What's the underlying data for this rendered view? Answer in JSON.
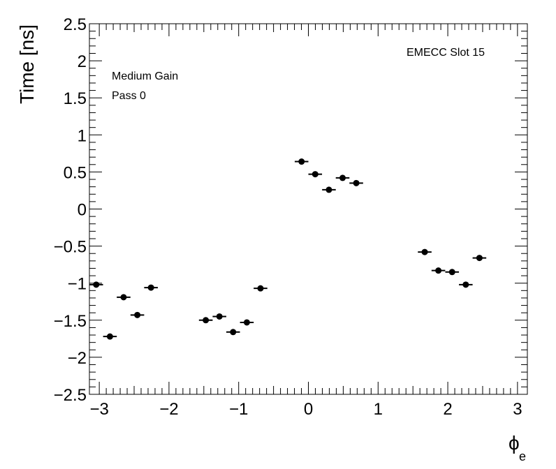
{
  "chart_data": {
    "type": "scatter",
    "title": "",
    "xlabel": "ϕ",
    "xlabel_subscript": "e",
    "ylabel": "Time [ns]",
    "xlim": [
      -3.1416,
      3.1416
    ],
    "ylim": [
      -2.5,
      2.5
    ],
    "x_ticks": [
      -3,
      -2,
      -1,
      0,
      1,
      2,
      3
    ],
    "x_tick_labels": [
      "−3",
      "−2",
      "−1",
      "0",
      "1",
      "2",
      "3"
    ],
    "y_ticks": [
      -2.5,
      -2,
      -1.5,
      -1,
      -0.5,
      0,
      0.5,
      1,
      1.5,
      2,
      2.5
    ],
    "y_tick_labels": [
      "−2.5",
      "−2",
      "−1.5",
      "−1",
      "−0.5",
      "0",
      "0.5",
      "1",
      "1.5",
      "2",
      "2.5"
    ],
    "grid": false,
    "x_error_half_width": 0.098,
    "points": [
      {
        "x": -3.044,
        "y": -1.02
      },
      {
        "x": -2.847,
        "y": -1.72
      },
      {
        "x": -2.651,
        "y": -1.19
      },
      {
        "x": -2.454,
        "y": -1.43
      },
      {
        "x": -2.258,
        "y": -1.06
      },
      {
        "x": -1.472,
        "y": -1.5
      },
      {
        "x": -1.276,
        "y": -1.45
      },
      {
        "x": -1.08,
        "y": -1.66
      },
      {
        "x": -0.883,
        "y": -1.53
      },
      {
        "x": -0.687,
        "y": -1.07
      },
      {
        "x": -0.098,
        "y": 0.64
      },
      {
        "x": 0.098,
        "y": 0.47
      },
      {
        "x": 0.295,
        "y": 0.26
      },
      {
        "x": 0.491,
        "y": 0.42
      },
      {
        "x": 0.687,
        "y": 0.35
      },
      {
        "x": 1.669,
        "y": -0.58
      },
      {
        "x": 1.865,
        "y": -0.83
      },
      {
        "x": 2.062,
        "y": -0.85
      },
      {
        "x": 2.258,
        "y": -1.02
      },
      {
        "x": 2.454,
        "y": -0.66
      }
    ],
    "annotations": {
      "slot": "EMECC Slot 15",
      "gain": "Medium Gain",
      "pass": "Pass 0"
    }
  }
}
